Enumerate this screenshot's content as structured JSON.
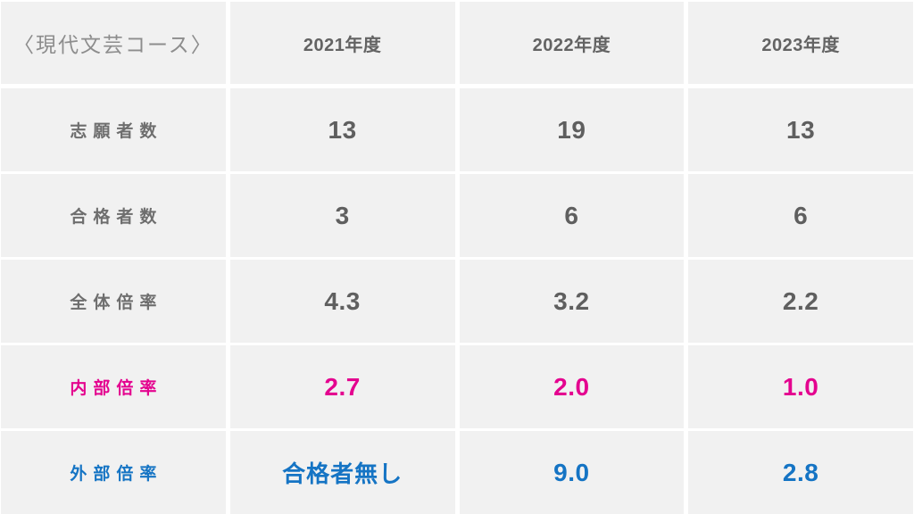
{
  "header": {
    "course_label": "〈現代文芸コース〉",
    "years": [
      "2021年度",
      "2022年度",
      "2023年度"
    ]
  },
  "table": {
    "rows": [
      {
        "label": "志願者数",
        "color": "gray",
        "values": [
          "13",
          "19",
          "13"
        ]
      },
      {
        "label": "合格者数",
        "color": "gray",
        "values": [
          "3",
          "6",
          "6"
        ]
      },
      {
        "label": "全体倍率",
        "color": "gray",
        "values": [
          "4.3",
          "3.2",
          "2.2"
        ]
      },
      {
        "label": "内部倍率",
        "color": "pink",
        "values": [
          "2.7",
          "2.0",
          "1.0"
        ]
      },
      {
        "label": "外部倍率",
        "color": "blue",
        "values": [
          "合格者無し",
          "9.0",
          "2.8"
        ]
      }
    ]
  },
  "colors": {
    "cell_background": "#f1f1f1",
    "divider": "#ffffff",
    "gray_text": "#5f5f5f",
    "muted_header": "#8d8d8d",
    "accent_pink": "#e4038f",
    "accent_blue": "#1574c4"
  },
  "chart_data": {
    "type": "table",
    "title": "〈現代文芸コース〉",
    "categories": [
      "2021年度",
      "2022年度",
      "2023年度"
    ],
    "series": [
      {
        "name": "志願者数",
        "values": [
          13,
          19,
          13
        ]
      },
      {
        "name": "合格者数",
        "values": [
          3,
          6,
          6
        ]
      },
      {
        "name": "全体倍率",
        "values": [
          4.3,
          3.2,
          2.2
        ]
      },
      {
        "name": "内部倍率",
        "values": [
          2.7,
          2.0,
          1.0
        ]
      },
      {
        "name": "外部倍率",
        "values": [
          "合格者無し",
          9.0,
          2.8
        ]
      }
    ],
    "layout": {
      "grid": "white dividers on light-gray cells",
      "legend": "none"
    }
  }
}
